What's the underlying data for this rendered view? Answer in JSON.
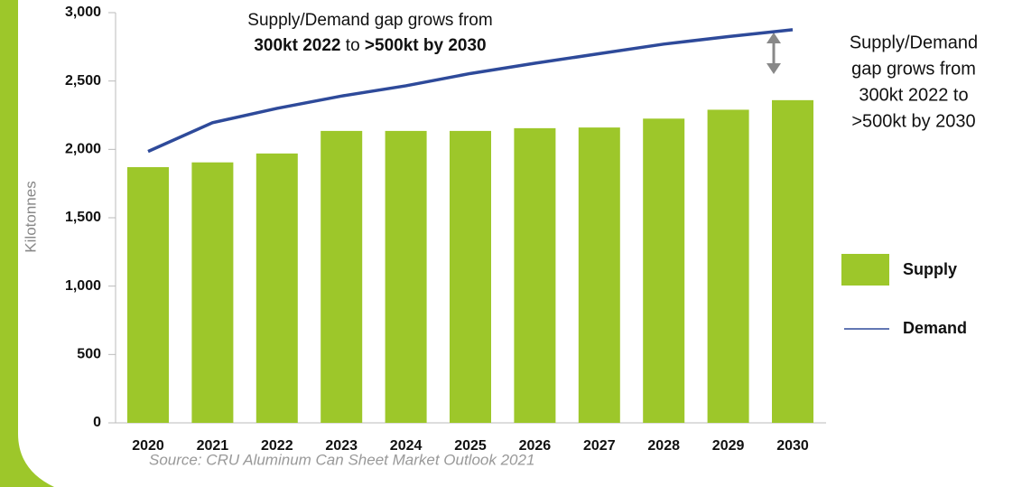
{
  "chart_data": {
    "type": "bar_line",
    "y_label": "Kilotonnes",
    "categories": [
      "2020",
      "2021",
      "2022",
      "2023",
      "2024",
      "2025",
      "2026",
      "2027",
      "2028",
      "2029",
      "2030"
    ],
    "series": [
      {
        "name": "Supply",
        "type": "bar",
        "color": "#9dc72a",
        "values": [
          1870,
          1905,
          1970,
          2135,
          2135,
          2135,
          2155,
          2160,
          2225,
          2290,
          2360
        ]
      },
      {
        "name": "Demand",
        "type": "line",
        "color": "#2e4a9a",
        "values": [
          1985,
          2195,
          2300,
          2390,
          2465,
          2555,
          2630,
          2700,
          2770,
          2825,
          2875
        ]
      }
    ],
    "ylim": [
      0,
      3000
    ],
    "yticks": [
      0,
      500,
      {
        "value": 1000,
        "label": "1,000"
      },
      {
        "value": 1500,
        "label": "1,500"
      },
      {
        "value": 2000,
        "label": "2,000"
      },
      {
        "value": 2500,
        "label": "2,500"
      },
      {
        "value": 3000,
        "label": "3,000"
      }
    ],
    "legend": "right",
    "annotation_top": {
      "line1": "Supply/Demand gap grows from",
      "part1": "300kt 2022",
      "part2": " to ",
      "part3": ">500kt by 2030"
    },
    "annotation_right": [
      "Supply/Demand",
      "gap grows from",
      "300kt 2022 to",
      ">500kt by 2030"
    ],
    "source": "Source: CRU Aluminum Can Sheet Market Outlook 2021"
  }
}
